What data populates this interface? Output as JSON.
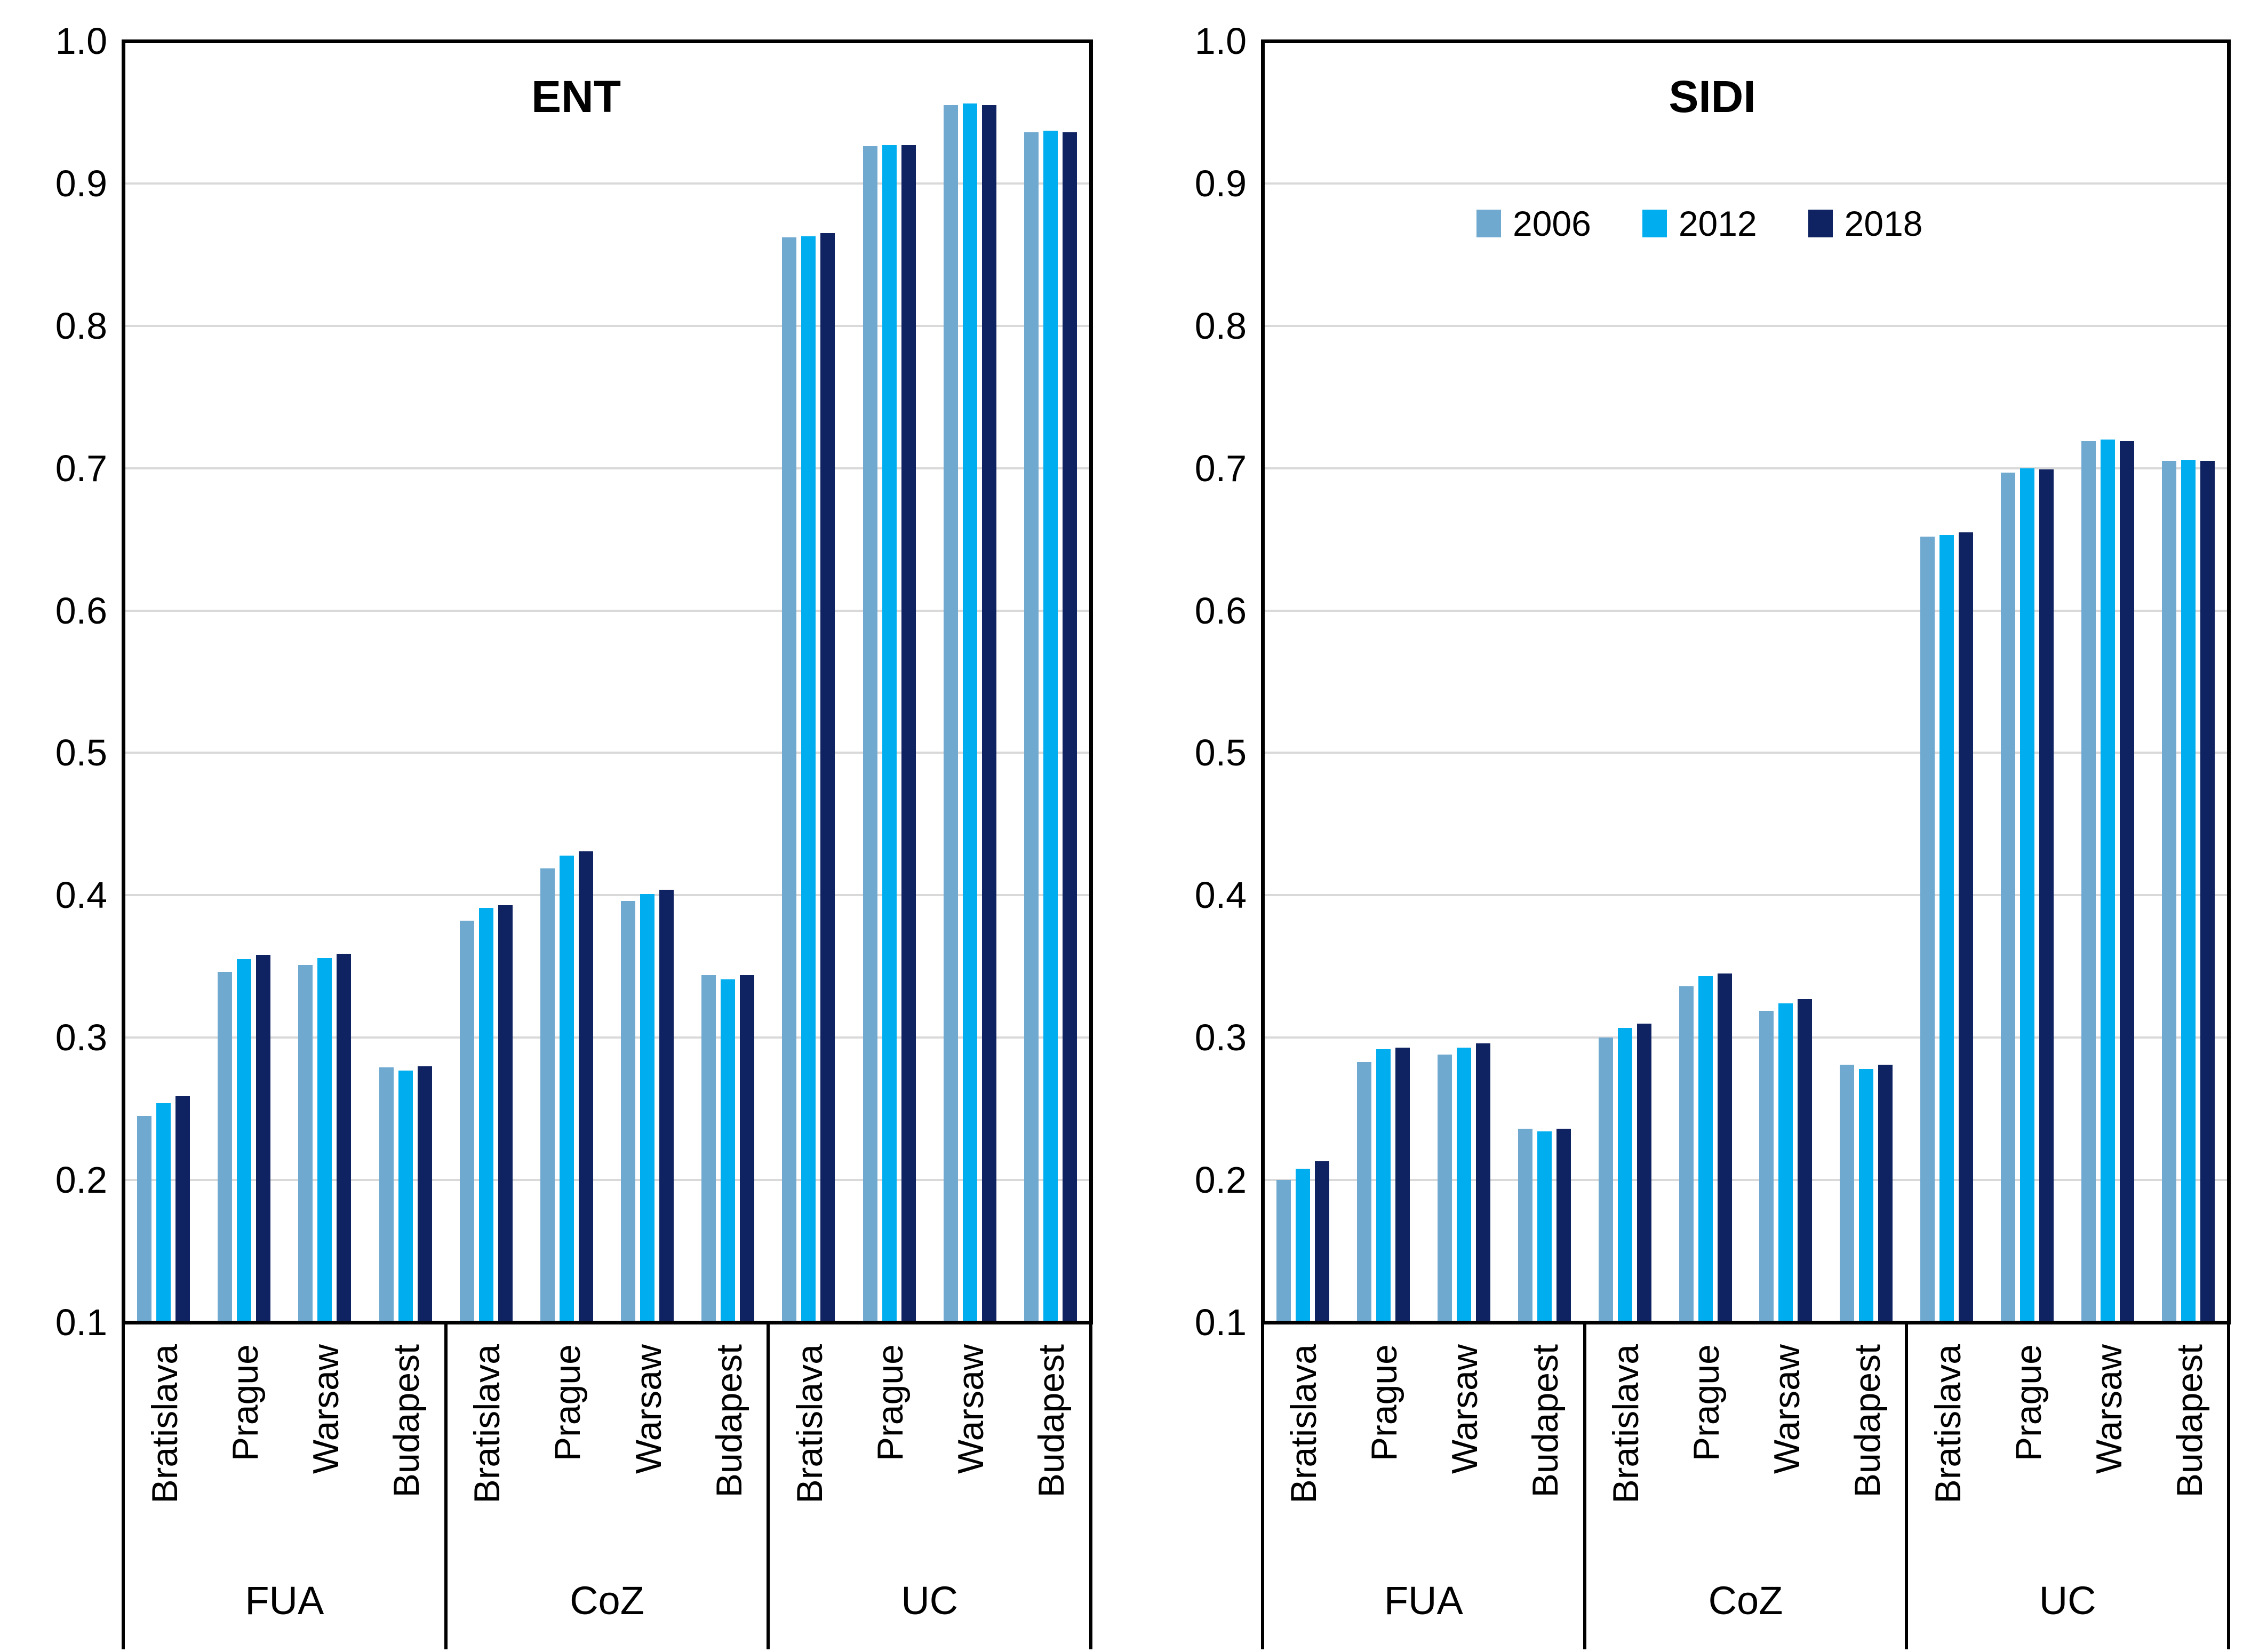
{
  "figure": {
    "background": "#FFFFFF"
  },
  "style": {
    "gridline_color": "#D9D9D9",
    "axis_color": "#000000",
    "series_colors": {
      "2006": "#6FA9D0",
      "2012": "#00AEEF",
      "2018": "#0F2261"
    }
  },
  "legend": {
    "items": [
      {
        "label": "2006",
        "color": "#6FA9D0"
      },
      {
        "label": "2012",
        "color": "#00AEEF"
      },
      {
        "label": "2018",
        "color": "#0F2261"
      }
    ]
  },
  "axis": {
    "y_ticks": [
      "1.0",
      "0.9",
      "0.8",
      "0.7",
      "0.6",
      "0.5",
      "0.4",
      "0.3",
      "0.2",
      "0.1"
    ]
  },
  "chart_data": [
    {
      "type": "bar",
      "title": "ENT",
      "ylim": [
        0.1,
        1.0
      ],
      "y_tick_step": 0.1,
      "grid": true,
      "legend_position": "none",
      "groups": [
        "FUA",
        "CoZ",
        "UC"
      ],
      "categories": [
        "Bratislava",
        "Prague",
        "Warsaw",
        "Budapest"
      ],
      "series": [
        {
          "name": "2006",
          "color": "#6FA9D0",
          "values": {
            "FUA": [
              0.245,
              0.346,
              0.351,
              0.279
            ],
            "CoZ": [
              0.382,
              0.419,
              0.396,
              0.344
            ],
            "UC": [
              0.862,
              0.926,
              0.955,
              0.936
            ]
          }
        },
        {
          "name": "2012",
          "color": "#00AEEF",
          "values": {
            "FUA": [
              0.254,
              0.355,
              0.356,
              0.277
            ],
            "CoZ": [
              0.391,
              0.428,
              0.401,
              0.341
            ],
            "UC": [
              0.863,
              0.927,
              0.956,
              0.937
            ]
          }
        },
        {
          "name": "2018",
          "color": "#0F2261",
          "values": {
            "FUA": [
              0.259,
              0.358,
              0.359,
              0.28
            ],
            "CoZ": [
              0.393,
              0.431,
              0.404,
              0.344
            ],
            "UC": [
              0.865,
              0.927,
              0.955,
              0.936
            ]
          }
        }
      ]
    },
    {
      "type": "bar",
      "title": "SIDI",
      "ylim": [
        0.1,
        1.0
      ],
      "y_tick_step": 0.1,
      "grid": true,
      "legend_position": "top-inside",
      "groups": [
        "FUA",
        "CoZ",
        "UC"
      ],
      "categories": [
        "Bratislava",
        "Prague",
        "Warsaw",
        "Budapest"
      ],
      "series": [
        {
          "name": "2006",
          "color": "#6FA9D0",
          "values": {
            "FUA": [
              0.2,
              0.283,
              0.288,
              0.236
            ],
            "CoZ": [
              0.3,
              0.336,
              0.319,
              0.281
            ],
            "UC": [
              0.652,
              0.697,
              0.719,
              0.705
            ]
          }
        },
        {
          "name": "2012",
          "color": "#00AEEF",
          "values": {
            "FUA": [
              0.208,
              0.292,
              0.293,
              0.234
            ],
            "CoZ": [
              0.307,
              0.343,
              0.324,
              0.278
            ],
            "UC": [
              0.653,
              0.7,
              0.72,
              0.706
            ]
          }
        },
        {
          "name": "2018",
          "color": "#0F2261",
          "values": {
            "FUA": [
              0.213,
              0.293,
              0.296,
              0.236
            ],
            "CoZ": [
              0.31,
              0.345,
              0.327,
              0.281
            ],
            "UC": [
              0.655,
              0.699,
              0.719,
              0.705
            ]
          }
        }
      ]
    }
  ]
}
